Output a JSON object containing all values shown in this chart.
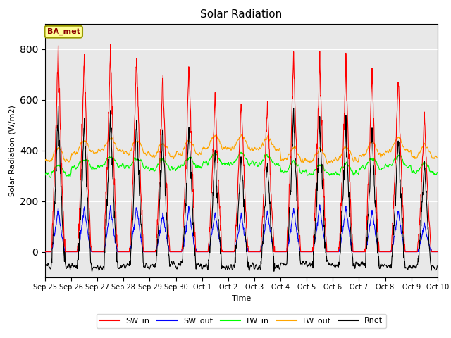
{
  "title": "Solar Radiation",
  "ylabel": "Solar Radiation (W/m2)",
  "xlabel": "Time",
  "ylim": [
    -100,
    900
  ],
  "annotation_text": "BA_met",
  "annotation_color": "#8B0000",
  "annotation_bg": "#FFFF99",
  "annotation_border": "#999900",
  "background_color": "#E8E8E8",
  "tick_labels": [
    "Sep 25",
    "Sep 26",
    "Sep 27",
    "Sep 28",
    "Sep 29",
    "Sep 30",
    "Oct 1",
    "Oct 2",
    "Oct 3",
    "Oct 4",
    "Oct 5",
    "Oct 6",
    "Oct 7",
    "Oct 8",
    "Oct 9",
    "Oct 10"
  ],
  "series": {
    "SW_in": {
      "color": "red",
      "lw": 0.8
    },
    "SW_out": {
      "color": "blue",
      "lw": 0.8
    },
    "LW_in": {
      "color": "lime",
      "lw": 0.8
    },
    "LW_out": {
      "color": "orange",
      "lw": 0.8
    },
    "Rnet": {
      "color": "black",
      "lw": 0.8
    }
  },
  "n_days": 15,
  "dt": 0.25,
  "sw_in_peaks": [
    800,
    770,
    785,
    785,
    705,
    740,
    625,
    595,
    600,
    775,
    760,
    755,
    730,
    705,
    535
  ],
  "sw_out_peaks": [
    170,
    175,
    180,
    180,
    155,
    175,
    155,
    150,
    160,
    175,
    185,
    180,
    165,
    165,
    110
  ],
  "lw_in_base": [
    305,
    330,
    340,
    335,
    325,
    335,
    350,
    350,
    345,
    315,
    305,
    310,
    330,
    340,
    310
  ],
  "lw_out_base": [
    360,
    390,
    400,
    390,
    378,
    388,
    408,
    408,
    402,
    362,
    356,
    362,
    383,
    398,
    372
  ],
  "lw_day_bump": 40,
  "rnet_night": -55
}
